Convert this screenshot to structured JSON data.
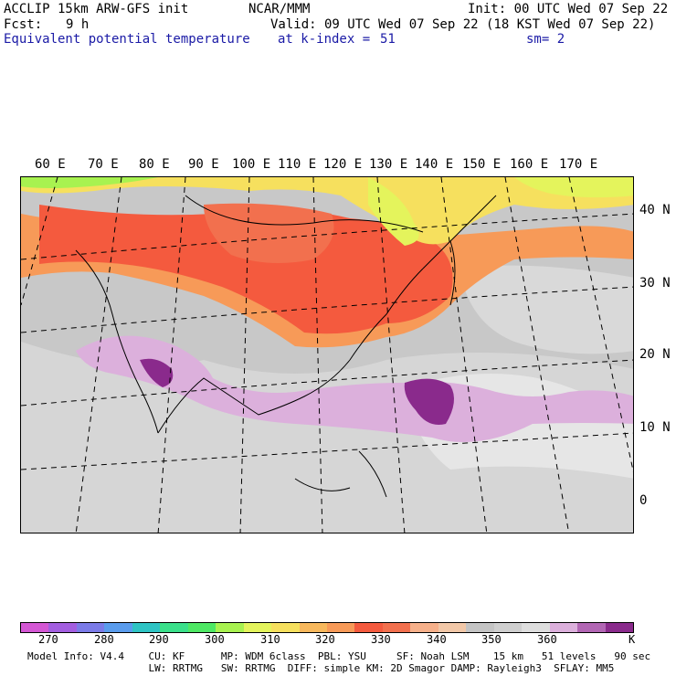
{
  "header": {
    "model": "ACCLIP 15km ARW-GFS init",
    "org": "NCAR/MMM",
    "init": "Init: 00 UTC Wed 07 Sep 22",
    "fcst_label": "Fcst:",
    "fcst_value": "9 h",
    "valid": "Valid: 09 UTC Wed 07 Sep 22 (18 KST Wed 07 Sep 22)",
    "field": "Equivalent potential temperature",
    "level": "at k-index =",
    "level_value": "51",
    "smooth": "sm= 2"
  },
  "map": {
    "lon_labels": [
      "60 E",
      "70 E",
      "80 E",
      "90 E",
      "100 E",
      "110 E",
      "120 E",
      "130 E",
      "140 E",
      "150 E",
      "160 E",
      "170 E"
    ],
    "lat_labels": [
      "40 N",
      "30 N",
      "20 N",
      "10 N",
      "0"
    ]
  },
  "colorbar": {
    "colors": [
      "#d457d4",
      "#a35ee0",
      "#7b7be8",
      "#5a9ced",
      "#2ec4c4",
      "#3ae08a",
      "#4ee864",
      "#a8f250",
      "#e4f45c",
      "#f6e05e",
      "#f7b85c",
      "#f79a58",
      "#f45a3e",
      "#f2704e",
      "#f6b08a",
      "#f2c8a8",
      "#c4c4c4",
      "#cfcfcf",
      "#dedede",
      "#dcb0dc",
      "#b266b4",
      "#8a2a8c"
    ],
    "labels": [
      "270",
      "280",
      "290",
      "300",
      "310",
      "320",
      "330",
      "340",
      "350",
      "360",
      "K"
    ]
  },
  "footer": {
    "line1": "Model Info: V4.4    CU: KF      MP: WDM 6class  PBL: YSU     SF: Noah LSM    15 km   51 levels   90 sec",
    "line2": "                    LW: RRTMG   SW: RRTMG  DIFF: simple KM: 2D Smagor DAMP: Rayleigh3  SFLAY: MM5"
  }
}
